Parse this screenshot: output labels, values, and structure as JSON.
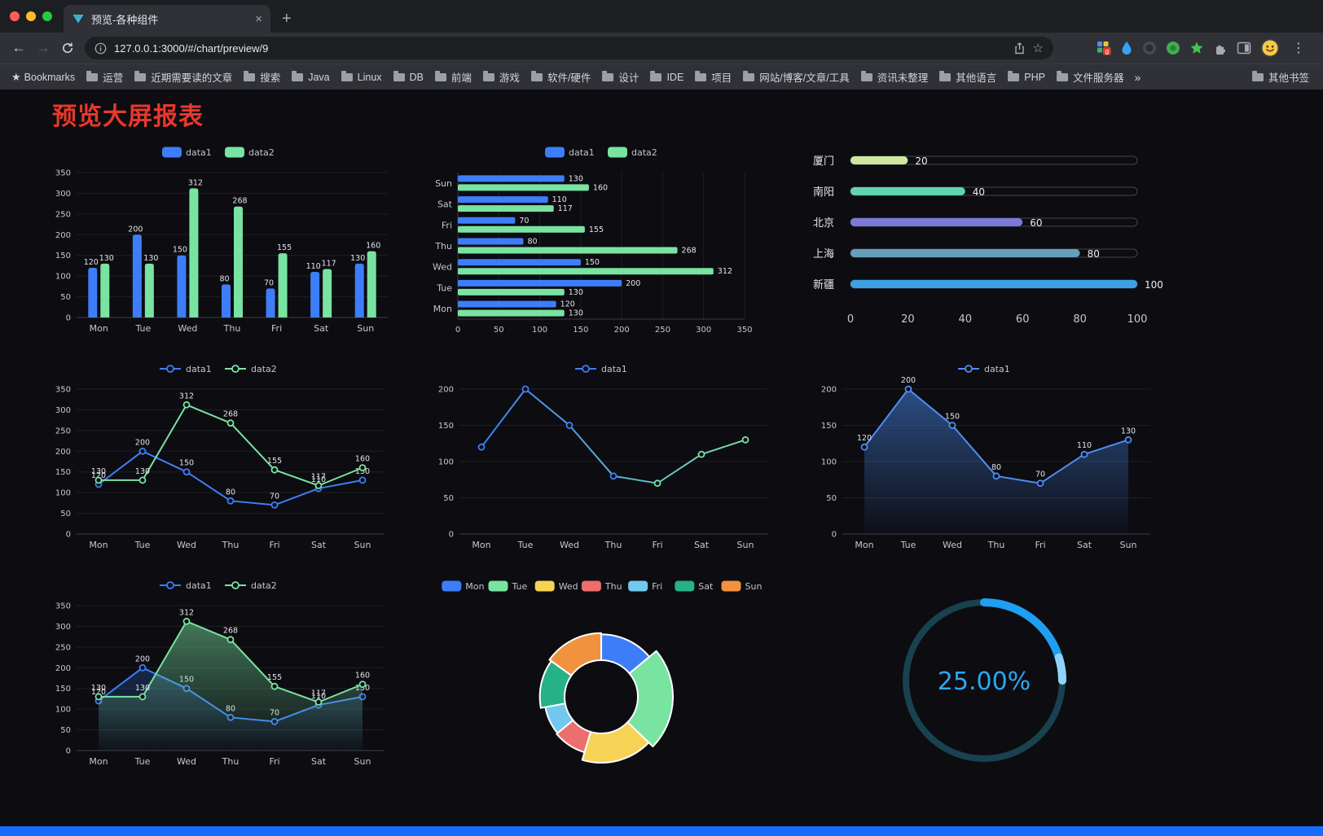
{
  "browser": {
    "tab_title": "预览-各种组件",
    "url": "127.0.0.1:3000/#/chart/preview/9",
    "bookmarks_label": "Bookmarks",
    "bookmarks": [
      "运营",
      "近期需要读的文章",
      "搜索",
      "Java",
      "Linux",
      "DB",
      "前端",
      "游戏",
      "软件/硬件",
      "设计",
      "IDE",
      "项目",
      "网站/博客/文章/工具",
      "资讯未整理",
      "其他语言",
      "PHP",
      "文件服务器"
    ],
    "other_bookmarks": "其他书签",
    "icons": {
      "close": "×",
      "new_tab": "+",
      "back": "←",
      "forward": "→",
      "star": "☆",
      "overflow": "»",
      "menu": "⋮",
      "bookmarks_star": "★",
      "ext_badge": "g"
    }
  },
  "page": {
    "title": "预览大屏报表",
    "title_color": "#e8382c",
    "background": "#0c0c11",
    "accent_bar_color": "#176bfb"
  },
  "chart_data": [
    {
      "type": "bar",
      "categories": [
        "Mon",
        "Tue",
        "Wed",
        "Thu",
        "Fri",
        "Sat",
        "Sun"
      ],
      "series": [
        {
          "name": "data1",
          "color": "#3d7ef8",
          "values": [
            120,
            200,
            150,
            80,
            70,
            110,
            130
          ]
        },
        {
          "name": "data2",
          "color": "#79e3a2",
          "values": [
            130,
            130,
            312,
            268,
            155,
            117,
            160
          ]
        }
      ],
      "ylim": [
        0,
        350
      ],
      "ytick_step": 50,
      "legend_position": "top",
      "show_labels": true
    },
    {
      "type": "hbar",
      "categories": [
        "Mon",
        "Tue",
        "Wed",
        "Thu",
        "Fri",
        "Sat",
        "Sun"
      ],
      "series": [
        {
          "name": "data1",
          "color": "#3d7ef8",
          "values": [
            120,
            200,
            150,
            80,
            70,
            110,
            130
          ]
        },
        {
          "name": "data2",
          "color": "#79e3a2",
          "values": [
            130,
            130,
            312,
            268,
            155,
            117,
            160
          ]
        }
      ],
      "xlim": [
        0,
        350
      ],
      "xtick_step": 50,
      "legend_position": "top",
      "show_labels": true
    },
    {
      "type": "progress",
      "items": [
        {
          "label": "厦门",
          "value": 20,
          "color": "#cfe6a0"
        },
        {
          "label": "南阳",
          "value": 40,
          "color": "#5fd6ad"
        },
        {
          "label": "北京",
          "value": 60,
          "color": "#7b79d8"
        },
        {
          "label": "上海",
          "value": 80,
          "color": "#64a0ba"
        },
        {
          "label": "新疆",
          "value": 100,
          "color": "#3ba1e3"
        }
      ],
      "xlim": [
        0,
        100
      ],
      "xticks": [
        0,
        20,
        40,
        60,
        80,
        100
      ]
    },
    {
      "type": "line",
      "categories": [
        "Mon",
        "Tue",
        "Wed",
        "Thu",
        "Fri",
        "Sat",
        "Sun"
      ],
      "series": [
        {
          "name": "data1",
          "color": "#3d7ef8",
          "values": [
            120,
            200,
            150,
            80,
            70,
            110,
            130
          ]
        },
        {
          "name": "data2",
          "color": "#79e3a2",
          "values": [
            130,
            130,
            312,
            268,
            155,
            117,
            160
          ]
        }
      ],
      "ylim": [
        0,
        350
      ],
      "ytick_step": 50,
      "legend_position": "top",
      "show_labels": true
    },
    {
      "type": "line",
      "categories": [
        "Mon",
        "Tue",
        "Wed",
        "Thu",
        "Fri",
        "Sat",
        "Sun"
      ],
      "series": [
        {
          "name": "data1",
          "color": "#3d7ef8",
          "color2": "#79e3a2",
          "values": [
            120,
            200,
            150,
            80,
            70,
            110,
            130
          ]
        }
      ],
      "ylim": [
        0,
        200
      ],
      "ytick_step": 50,
      "legend_position": "top",
      "show_labels": false
    },
    {
      "type": "line",
      "categories": [
        "Mon",
        "Tue",
        "Wed",
        "Thu",
        "Fri",
        "Sat",
        "Sun"
      ],
      "series": [
        {
          "name": "data1",
          "color": "#4d8ef7",
          "values": [
            120,
            200,
            150,
            80,
            70,
            110,
            130
          ],
          "area": true,
          "area_opacity": 0.5
        }
      ],
      "ylim": [
        0,
        200
      ],
      "ytick_step": 50,
      "legend_position": "top",
      "show_labels": true
    },
    {
      "type": "line",
      "categories": [
        "Mon",
        "Tue",
        "Wed",
        "Thu",
        "Fri",
        "Sat",
        "Sun"
      ],
      "series": [
        {
          "name": "data1",
          "color": "#3d7ef8",
          "values": [
            120,
            200,
            150,
            80,
            70,
            110,
            130
          ],
          "area": true,
          "area_opacity": 0.25
        },
        {
          "name": "data2",
          "color": "#79e3a2",
          "values": [
            130,
            130,
            312,
            268,
            155,
            117,
            160
          ],
          "area": true,
          "area_opacity": 0.5
        }
      ],
      "ylim": [
        0,
        350
      ],
      "ytick_step": 50,
      "legend_position": "top",
      "show_labels": true
    },
    {
      "type": "pie",
      "legend": [
        "Mon",
        "Tue",
        "Wed",
        "Thu",
        "Fri",
        "Sat",
        "Sun"
      ],
      "values": [
        120,
        200,
        150,
        80,
        70,
        110,
        130
      ],
      "colors": [
        "#3d7ef8",
        "#79e3a2",
        "#f6d355",
        "#ec6e6e",
        "#72c8ee",
        "#27b186",
        "#f2923e"
      ],
      "donut": true,
      "rose": true,
      "legend_position": "top"
    },
    {
      "type": "gauge",
      "value": 25,
      "label": "25.00%",
      "color": "#1e9ff2",
      "track_color": "#17424e"
    }
  ]
}
